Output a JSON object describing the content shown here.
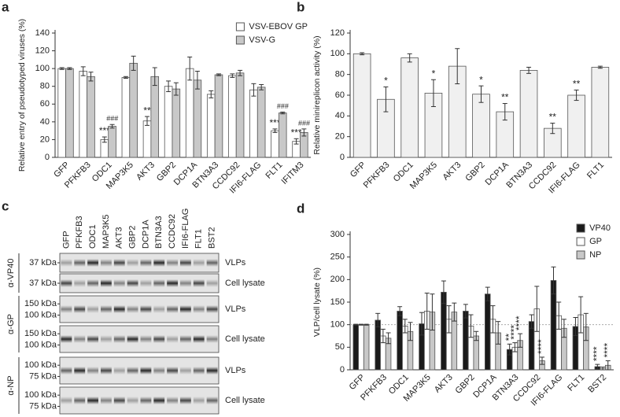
{
  "chart_data": [
    {
      "type": "bar",
      "panel": "a",
      "ylabel": "Relative entry of pseudotyped viruses (%)",
      "categories": [
        "GFP",
        "PFKFB3",
        "ODC1",
        "MAP3K5",
        "AKT3",
        "GBP2",
        "DCP1A",
        "BTN3A3",
        "CCDC92",
        "IFI6-FLAG",
        "FLT1",
        "IFITM3"
      ],
      "series": [
        {
          "name": "VSV-EBOV GP",
          "color": "#ffffff",
          "values": [
            100,
            97,
            20,
            90,
            41,
            80,
            100,
            71,
            92,
            76,
            30,
            18
          ],
          "errors": [
            1,
            5,
            3,
            1,
            5,
            6,
            13,
            4,
            2,
            7,
            2,
            3
          ],
          "significance": [
            null,
            null,
            "***",
            null,
            "**",
            null,
            null,
            null,
            null,
            null,
            "***",
            "***"
          ]
        },
        {
          "name": "VSV-G",
          "color": "#c8c8c8",
          "values": [
            100,
            91,
            35,
            106,
            91,
            77,
            87,
            93,
            95,
            79,
            50,
            28
          ],
          "errors": [
            1,
            5,
            2,
            8,
            10,
            7,
            10,
            1,
            3,
            3,
            1,
            4
          ],
          "significance": [
            null,
            null,
            "###",
            null,
            null,
            null,
            null,
            null,
            null,
            null,
            "###",
            "###"
          ]
        }
      ],
      "ylim": [
        0,
        140
      ],
      "yticks": [
        0,
        20,
        40,
        60,
        80,
        100,
        120,
        140
      ],
      "legend": "top-right"
    },
    {
      "type": "bar",
      "panel": "b",
      "ylabel": "Relative minireplicon activity (%)",
      "categories": [
        "GFP",
        "PFKFB3",
        "ODC1",
        "MAP3K5",
        "AKT3",
        "GBP2",
        "DCP1A",
        "BTN3A3",
        "CCDC92",
        "IFI6-FLAG",
        "FLT1"
      ],
      "color": "#f0f0f0",
      "values": [
        100,
        56,
        96,
        62,
        88,
        61,
        44,
        84,
        28,
        60,
        87
      ],
      "errors": [
        1,
        12,
        4,
        13,
        17,
        8,
        8,
        3,
        5,
        5,
        1
      ],
      "significance": [
        null,
        "*",
        null,
        "*",
        null,
        "*",
        "**",
        null,
        "**",
        "**",
        null
      ],
      "ylim": [
        0,
        120
      ],
      "yticks": [
        0,
        20,
        40,
        60,
        80,
        100,
        120
      ]
    },
    {
      "type": "bar",
      "panel": "d",
      "ylabel": "VLP/cell lysate (%)",
      "categories": [
        "GFP",
        "PFKFB3",
        "ODC1",
        "MAP3K5",
        "AKT3",
        "GBP2",
        "DCP1A",
        "BTN3A3",
        "CCDC92",
        "IFI6-FLAG",
        "FLT1",
        "BST2"
      ],
      "series": [
        {
          "name": "VP40",
          "color": "#1a1a1a",
          "values": [
            100,
            110,
            130,
            102,
            172,
            130,
            168,
            45,
            107,
            198,
            96,
            7
          ],
          "errors": [
            1,
            15,
            10,
            25,
            25,
            15,
            15,
            12,
            15,
            30,
            20,
            5
          ],
          "significance": [
            null,
            null,
            null,
            null,
            null,
            null,
            null,
            "**",
            null,
            null,
            null,
            "****"
          ]
        },
        {
          "name": "GP",
          "color": "#ffffff",
          "values": [
            100,
            75,
            97,
            130,
            112,
            97,
            112,
            50,
            135,
            120,
            122,
            3
          ],
          "errors": [
            1,
            15,
            15,
            40,
            30,
            25,
            30,
            10,
            50,
            30,
            40,
            3
          ],
          "significance": [
            null,
            null,
            null,
            null,
            null,
            null,
            null,
            "****",
            null,
            null,
            null,
            null
          ]
        },
        {
          "name": "NP",
          "color": "#c8c8c8",
          "values": [
            100,
            70,
            85,
            128,
            128,
            75,
            82,
            65,
            20,
            92,
            95,
            10
          ],
          "errors": [
            1,
            12,
            20,
            40,
            20,
            10,
            25,
            15,
            8,
            20,
            30,
            10
          ],
          "significance": [
            null,
            null,
            null,
            null,
            null,
            null,
            null,
            "****",
            "****",
            null,
            null,
            "****"
          ]
        }
      ],
      "ylim": [
        0,
        300
      ],
      "yticks": [
        0,
        50,
        100,
        150,
        200,
        250,
        300
      ],
      "hline": 100,
      "legend": "top-right"
    }
  ],
  "blot": {
    "panel": "c",
    "lanes": [
      "GFP",
      "PFKFB3",
      "ODC1",
      "MAP3K5",
      "AKT3",
      "GBP2",
      "DCP1A",
      "BTN3A3",
      "CCDC92",
      "IFI6-FLAG",
      "FLT1",
      "BST2"
    ],
    "groups": [
      {
        "antibody": "α-VP40",
        "rows": [
          {
            "markers": [
              "37 kDa"
            ],
            "label": "VLPs"
          },
          {
            "markers": [
              "37 kDa"
            ],
            "label": "Cell lysate"
          }
        ]
      },
      {
        "antibody": "α-GP",
        "rows": [
          {
            "markers": [
              "150 kDa",
              "100 kDa"
            ],
            "label": "VLPs"
          },
          {
            "markers": [
              "150 kDa",
              "100 kDa"
            ],
            "label": "Cell lysate"
          }
        ]
      },
      {
        "antibody": "α-NP",
        "rows": [
          {
            "markers": [
              "100 kDa",
              "75 kDa"
            ],
            "label": "VLPs"
          },
          {
            "markers": [
              "100 kDa",
              "75 kDa"
            ],
            "label": "Cell lysate"
          }
        ]
      }
    ]
  }
}
